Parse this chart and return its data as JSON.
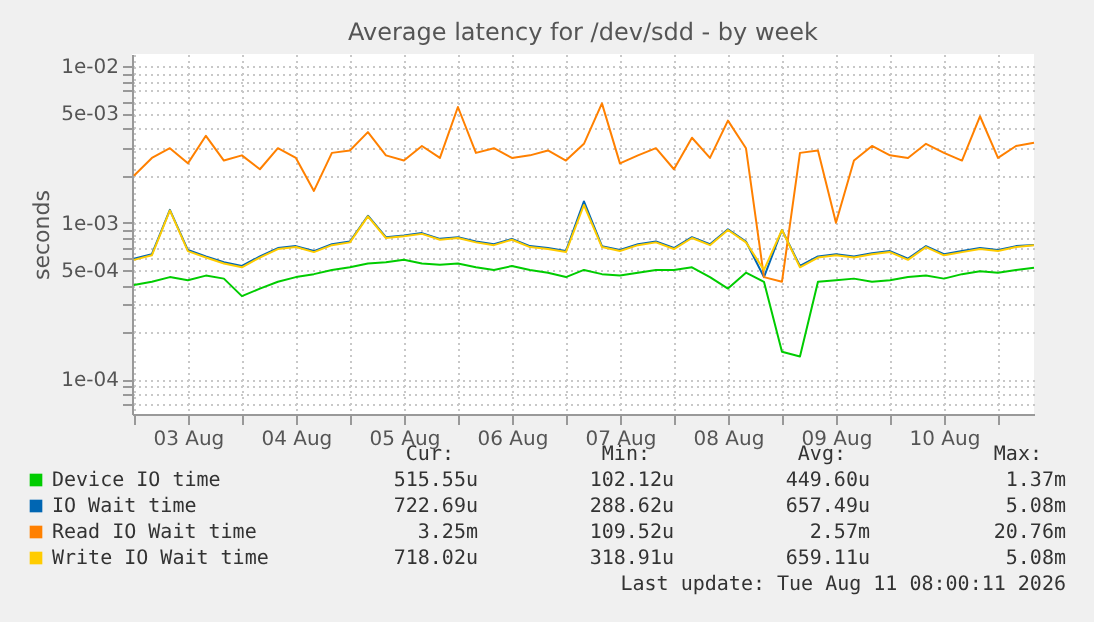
{
  "chart_data": {
    "type": "line",
    "title": "Average latency for /dev/sdd - by week",
    "ylabel": "seconds",
    "log": "y",
    "grid": true,
    "legend": "bottom left",
    "marker": "none",
    "line_style": "solid",
    "xlim": [
      "2026-08-02T23:35",
      "2026-08-11T08:00"
    ],
    "xticks": [
      {
        "value": "2026-08-03T00:00",
        "label": null
      },
      {
        "value": "2026-08-03T12:00",
        "label": "03 Aug"
      },
      {
        "value": "2026-08-04T00:00",
        "label": null
      },
      {
        "value": "2026-08-04T12:00",
        "label": "04 Aug"
      },
      {
        "value": "2026-08-05T00:00",
        "label": null
      },
      {
        "value": "2026-08-05T12:00",
        "label": "05 Aug"
      },
      {
        "value": "2026-08-06T00:00",
        "label": null
      },
      {
        "value": "2026-08-06T12:00",
        "label": "06 Aug"
      },
      {
        "value": "2026-08-07T00:00",
        "label": null
      },
      {
        "value": "2026-08-07T12:00",
        "label": "07 Aug"
      },
      {
        "value": "2026-08-08T00:00",
        "label": null
      },
      {
        "value": "2026-08-08T12:00",
        "label": "08 Aug"
      },
      {
        "value": "2026-08-09T00:00",
        "label": null
      },
      {
        "value": "2026-08-09T12:00",
        "label": "09 Aug"
      },
      {
        "value": "2026-08-10T00:00",
        "label": null
      },
      {
        "value": "2026-08-10T12:00",
        "label": "10 Aug"
      },
      {
        "value": "2026-08-11T00:00",
        "label": null
      }
    ],
    "ylim": [
      6e-05,
      0.012
    ],
    "yticks": [
      {
        "value": 7e-05,
        "label": null
      },
      {
        "value": 8e-05,
        "label": null
      },
      {
        "value": 9e-05,
        "label": null
      },
      {
        "value": 0.0001,
        "label": "1e-04"
      },
      {
        "value": 0.0002,
        "label": null
      },
      {
        "value": 0.0003,
        "label": null
      },
      {
        "value": 0.0004,
        "label": null
      },
      {
        "value": 0.0005,
        "label": "5e-04"
      },
      {
        "value": 0.0006,
        "label": null
      },
      {
        "value": 0.0007,
        "label": null
      },
      {
        "value": 0.0008,
        "label": null
      },
      {
        "value": 0.0009,
        "label": null
      },
      {
        "value": 0.001,
        "label": "1e-03"
      },
      {
        "value": 0.002,
        "label": null
      },
      {
        "value": 0.003,
        "label": null
      },
      {
        "value": 0.004,
        "label": null
      },
      {
        "value": 0.005,
        "label": "5e-03"
      },
      {
        "value": 0.006,
        "label": null
      },
      {
        "value": 0.007,
        "label": null
      },
      {
        "value": 0.008,
        "label": null
      },
      {
        "value": 0.009,
        "label": null
      },
      {
        "value": 0.01,
        "label": "1e-02"
      }
    ],
    "x": [
      "2026-08-03T00:00",
      "2026-08-03T04:00",
      "2026-08-03T08:00",
      "2026-08-03T12:00",
      "2026-08-03T16:00",
      "2026-08-03T20:00",
      "2026-08-04T00:00",
      "2026-08-04T04:00",
      "2026-08-04T08:00",
      "2026-08-04T12:00",
      "2026-08-04T16:00",
      "2026-08-04T20:00",
      "2026-08-05T00:00",
      "2026-08-05T04:00",
      "2026-08-05T08:00",
      "2026-08-05T12:00",
      "2026-08-05T16:00",
      "2026-08-05T20:00",
      "2026-08-06T00:00",
      "2026-08-06T04:00",
      "2026-08-06T08:00",
      "2026-08-06T12:00",
      "2026-08-06T16:00",
      "2026-08-06T20:00",
      "2026-08-07T00:00",
      "2026-08-07T04:00",
      "2026-08-07T08:00",
      "2026-08-07T12:00",
      "2026-08-07T16:00",
      "2026-08-07T20:00",
      "2026-08-08T00:00",
      "2026-08-08T04:00",
      "2026-08-08T08:00",
      "2026-08-08T12:00",
      "2026-08-08T16:00",
      "2026-08-08T20:00",
      "2026-08-09T00:00",
      "2026-08-09T04:00",
      "2026-08-09T08:00",
      "2026-08-09T12:00",
      "2026-08-09T16:00",
      "2026-08-09T20:00",
      "2026-08-10T00:00",
      "2026-08-10T04:00",
      "2026-08-10T08:00",
      "2026-08-10T12:00",
      "2026-08-10T16:00",
      "2026-08-10T20:00",
      "2026-08-11T00:00",
      "2026-08-11T04:00",
      "2026-08-11T08:00"
    ],
    "series": [
      {
        "name": "Device IO time",
        "color": "#00cc00",
        "values": [
          0.0004,
          0.00042,
          0.00045,
          0.00043,
          0.00046,
          0.00044,
          0.00034,
          0.00038,
          0.00042,
          0.00045,
          0.00047,
          0.0005,
          0.00052,
          0.00055,
          0.00056,
          0.00058,
          0.00055,
          0.00054,
          0.00055,
          0.00052,
          0.0005,
          0.00053,
          0.0005,
          0.00048,
          0.00045,
          0.0005,
          0.00047,
          0.00046,
          0.00048,
          0.0005,
          0.0005,
          0.00052,
          0.00045,
          0.00038,
          0.00048,
          0.00042,
          0.00015,
          0.00014,
          0.00042,
          0.00043,
          0.00044,
          0.00042,
          0.00043,
          0.00045,
          0.00046,
          0.00044,
          0.00047,
          0.00049,
          0.00048,
          0.0005,
          0.000516
        ]
      },
      {
        "name": "IO Wait time",
        "color": "#0066b3",
        "values": [
          0.00059,
          0.00063,
          0.00121,
          0.00067,
          0.00061,
          0.00056,
          0.00053,
          0.00061,
          0.00069,
          0.00071,
          0.00066,
          0.00073,
          0.00076,
          0.00111,
          0.00081,
          0.00083,
          0.00086,
          0.00079,
          0.00081,
          0.00076,
          0.00073,
          0.00079,
          0.00071,
          0.00069,
          0.00066,
          0.00137,
          0.00071,
          0.00067,
          0.00073,
          0.00076,
          0.00069,
          0.00081,
          0.00073,
          0.00091,
          0.00076,
          0.00045,
          0.0009,
          0.00053,
          0.00061,
          0.00063,
          0.00061,
          0.00064,
          0.00066,
          0.00059,
          0.00071,
          0.00063,
          0.00066,
          0.00069,
          0.00067,
          0.00071,
          0.000723
        ]
      },
      {
        "name": "Read IO Wait time",
        "color": "#ff8000",
        "values": [
          0.002,
          0.0026,
          0.003,
          0.0024,
          0.0036,
          0.0025,
          0.0027,
          0.0022,
          0.003,
          0.0026,
          0.0016,
          0.0028,
          0.0029,
          0.0038,
          0.0027,
          0.0025,
          0.0031,
          0.0026,
          0.0055,
          0.0028,
          0.003,
          0.0026,
          0.0027,
          0.0029,
          0.0025,
          0.0032,
          0.0058,
          0.0024,
          0.0027,
          0.003,
          0.0022,
          0.0035,
          0.0026,
          0.0045,
          0.003,
          0.00045,
          0.00042,
          0.0028,
          0.0029,
          0.001,
          0.0025,
          0.0031,
          0.0027,
          0.0026,
          0.0032,
          0.0028,
          0.0025,
          0.0048,
          0.0026,
          0.0031,
          0.00325
        ]
      },
      {
        "name": "Write IO Wait time",
        "color": "#ffcc00",
        "values": [
          0.00058,
          0.00062,
          0.0012,
          0.00066,
          0.0006,
          0.00055,
          0.00052,
          0.0006,
          0.00068,
          0.0007,
          0.00065,
          0.00072,
          0.00075,
          0.0011,
          0.0008,
          0.00082,
          0.00085,
          0.00078,
          0.0008,
          0.00075,
          0.00072,
          0.00078,
          0.0007,
          0.00068,
          0.00065,
          0.0013,
          0.0007,
          0.00066,
          0.00072,
          0.00075,
          0.00068,
          0.0008,
          0.00072,
          0.0009,
          0.00075,
          0.0005,
          0.0009,
          0.00052,
          0.0006,
          0.00062,
          0.0006,
          0.00063,
          0.00065,
          0.00058,
          0.0007,
          0.00062,
          0.00065,
          0.00068,
          0.00066,
          0.0007,
          0.000718
        ]
      }
    ],
    "annotations": [
      "Cur:",
      "Min:",
      "Avg:",
      "Max:",
      "515.55u",
      "102.12u",
      "449.60u",
      "1.37m",
      "722.69u",
      "288.62u",
      "657.49u",
      "5.08m",
      "3.25m",
      "109.52u",
      "2.57m",
      "20.76m",
      "718.02u",
      "318.91u",
      "659.11u",
      "5.08m",
      "Last update: Tue Aug 11 08:00:11 2026"
    ]
  }
}
